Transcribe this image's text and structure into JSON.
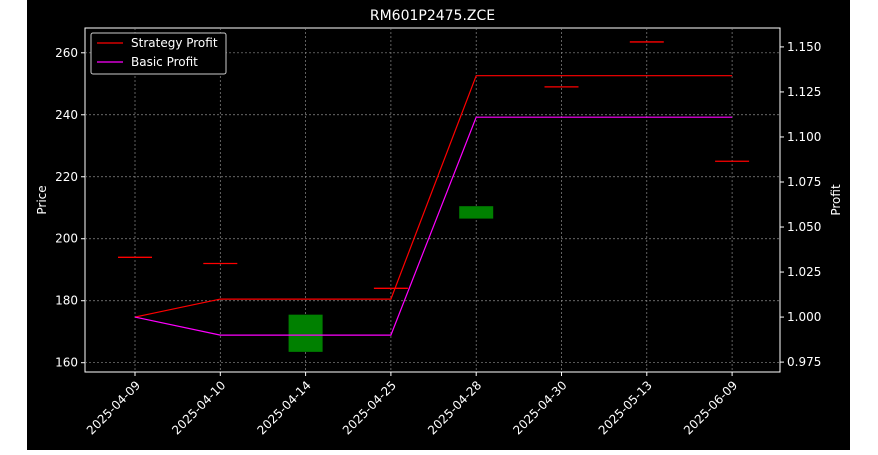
{
  "chart_data": {
    "type": "line",
    "title": "RM601P2475.ZCE",
    "ylabel": "Price",
    "y2label": "Profit",
    "categories": [
      "2025-04-09",
      "2025-04-10",
      "2025-04-14",
      "2025-04-25",
      "2025-04-28",
      "2025-04-30",
      "2025-05-13",
      "2025-06-09"
    ],
    "ylim": [
      157,
      268
    ],
    "y2lim": [
      0.9695,
      1.1605
    ],
    "yticks": [
      160,
      180,
      200,
      220,
      240,
      260
    ],
    "y2ticks": [
      "0.975",
      "1.000",
      "1.025",
      "1.050",
      "1.075",
      "1.100",
      "1.125",
      "1.150"
    ],
    "candles": [
      {
        "date": "2025-04-09",
        "open": 194,
        "close": 194,
        "color": "#ff0000"
      },
      {
        "date": "2025-04-10",
        "open": 192,
        "close": 192,
        "color": "#ff0000"
      },
      {
        "date": "2025-04-14",
        "open": 175.5,
        "close": 163.5,
        "color": "#008000"
      },
      {
        "date": "2025-04-25",
        "open": 184,
        "close": 184,
        "color": "#ff0000"
      },
      {
        "date": "2025-04-28",
        "open": 210.5,
        "close": 206.5,
        "color": "#008000"
      },
      {
        "date": "2025-04-30",
        "open": 249,
        "close": 249,
        "color": "#ff0000"
      },
      {
        "date": "2025-05-13",
        "open": 263.5,
        "close": 263.5,
        "color": "#ff0000"
      },
      {
        "date": "2025-06-09",
        "open": 225,
        "close": 225,
        "color": "#ff0000"
      }
    ],
    "series": [
      {
        "name": "Strategy Profit",
        "color": "#ff0000",
        "values": [
          1.0,
          1.01,
          1.01,
          1.01,
          1.134,
          1.134,
          1.134,
          1.134
        ]
      },
      {
        "name": "Basic Profit",
        "color": "#ff00ff",
        "values": [
          1.0,
          0.99,
          0.99,
          0.99,
          1.111,
          1.111,
          1.111,
          1.111
        ]
      }
    ],
    "grid": true,
    "legend": "top-left"
  }
}
